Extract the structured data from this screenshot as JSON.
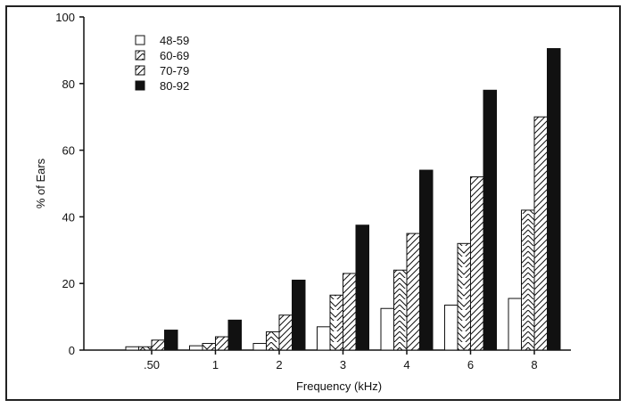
{
  "chart_data": {
    "type": "bar",
    "xlabel": "Frequency (kHz)",
    "ylabel": "% of Ears",
    "categories": [
      ".50",
      "1",
      "2",
      "3",
      "4",
      "6",
      "8"
    ],
    "ylim": [
      0,
      100
    ],
    "yticks": [
      0,
      20,
      40,
      60,
      80,
      100
    ],
    "grid": false,
    "legend_position": "top-left",
    "series": [
      {
        "name": "48-59",
        "fill": "open",
        "values": [
          1,
          1.3,
          2,
          7,
          12.5,
          13.5,
          15.5
        ]
      },
      {
        "name": "60-69",
        "fill": "chevron-hatch",
        "values": [
          1,
          2,
          5.5,
          16.5,
          24,
          32,
          42
        ]
      },
      {
        "name": "70-79",
        "fill": "diagonal-hatch",
        "values": [
          3,
          4,
          10.5,
          23,
          35,
          52,
          70
        ]
      },
      {
        "name": "80-92",
        "fill": "solid-black",
        "values": [
          6,
          9,
          21,
          37.5,
          54,
          78,
          90.5
        ]
      }
    ],
    "colors": {
      "ink": "#111111",
      "background": "#ffffff"
    }
  }
}
